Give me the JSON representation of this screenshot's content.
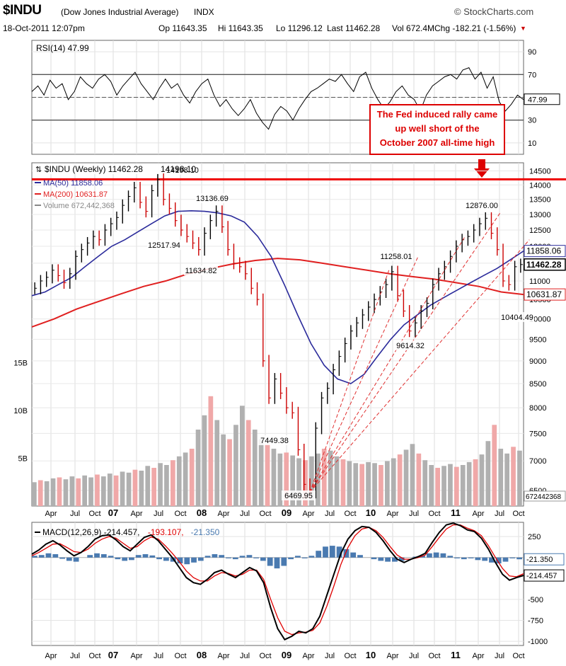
{
  "header": {
    "symbol": "$INDU",
    "name": "(Dow Jones Industrial Average)",
    "exchange": "INDX",
    "brand": "© StockCharts.com",
    "datetime": "18-Oct-2011 12:07pm",
    "open": "Op 11643.35",
    "high": "Hi 11643.35",
    "low": "Lo 11296.12",
    "last": "Last 11462.28",
    "volume": "Vol 672.4M",
    "change": "Chg -182.21 (-1.56%)",
    "change_color": "#cc0000"
  },
  "colors": {
    "price_up": "#000000",
    "price_down": "#cc0000",
    "ma50": "#2b2b9b",
    "ma200": "#e02020",
    "volume_up": "#b0b0b0",
    "volume_down": "#f0a8a8",
    "resistance": "#ee0000",
    "macd_line": "#000000",
    "signal_line": "#e00000",
    "histogram": "#4a7ab0",
    "annotation": "#dd0000"
  },
  "chart_data": [
    {
      "type": "line",
      "title": "RSI(14) 47.99",
      "name": "RSI",
      "ylim": [
        0,
        100
      ],
      "yticks": [
        10,
        30,
        50,
        70,
        90
      ],
      "reference_lines": [
        70,
        50,
        30
      ],
      "last_value_label": "47.99",
      "grid": true,
      "annotation": {
        "text_lines": [
          "The Fed induced rally came",
          "up well short of the",
          "October 2007 all-time high"
        ],
        "location": "right"
      },
      "series": [
        {
          "values": [
            55,
            60,
            52,
            65,
            58,
            62,
            48,
            55,
            68,
            62,
            58,
            66,
            70,
            64,
            52,
            60,
            66,
            72,
            62,
            55,
            48,
            58,
            66,
            58,
            62,
            52,
            45,
            55,
            62,
            66,
            52,
            42,
            48,
            40,
            34,
            40,
            48,
            36,
            28,
            22,
            35,
            42,
            38,
            30,
            40,
            48,
            55,
            58,
            62,
            66,
            64,
            70,
            62,
            55,
            68,
            72,
            58,
            48,
            40,
            46,
            55,
            60,
            52,
            48,
            38,
            52,
            60,
            64,
            68,
            70,
            66,
            74,
            76,
            66,
            72,
            58,
            68,
            46,
            38,
            44,
            52,
            48
          ]
        }
      ]
    },
    {
      "type": "line",
      "title": "$INDU (Weekly) 11462.28",
      "subtitle_last_value": "11462.28",
      "ylabel_scale": "log",
      "ylim": [
        6250,
        14800
      ],
      "yticks": [
        6500,
        7000,
        7500,
        8000,
        8500,
        9000,
        9500,
        10000,
        10500,
        11000,
        11500,
        12000,
        12500,
        13000,
        13500,
        14000,
        14500
      ],
      "x_tick_labels": [
        "Apr",
        "Jul",
        "Oct",
        "07",
        "Apr",
        "Jul",
        "Oct",
        "08",
        "Apr",
        "Jul",
        "Oct",
        "09",
        "Apr",
        "Jul",
        "Oct",
        "10",
        "Apr",
        "Jul",
        "Oct",
        "11",
        "Apr",
        "Jul",
        "Oct"
      ],
      "x_bold_ticks": [
        "07",
        "08",
        "09",
        "10",
        "11"
      ],
      "legend": [
        {
          "label": "MA(50) 11858.06",
          "color": "#2b2b9b"
        },
        {
          "label": "MA(200) 10631.87",
          "color": "#e02020"
        },
        {
          "label": "Volume 672,442,368",
          "color": "#888888"
        }
      ],
      "price_labels": [
        {
          "label": "14198.10",
          "value": 14198.1
        },
        {
          "label": "12517.94",
          "value": 12517.94
        },
        {
          "label": "13136.69",
          "value": 13136.69
        },
        {
          "label": "11634.82",
          "value": 11634.82
        },
        {
          "label": "7449.38",
          "value": 7449.38
        },
        {
          "label": "6469.95",
          "value": 6469.95
        },
        {
          "label": "11258.01",
          "value": 11258.01
        },
        {
          "label": "9614.32",
          "value": 9614.32
        },
        {
          "label": "12876.00",
          "value": 12876.0
        },
        {
          "label": "10404.49",
          "value": 10404.49
        }
      ],
      "axis_badges": [
        {
          "label": "11858.06",
          "value": 11858.06,
          "style": "ma50"
        },
        {
          "label": "11462.28",
          "value": 11462.28,
          "style": "last"
        },
        {
          "label": "10631.87",
          "value": 10631.87,
          "style": "ma200"
        }
      ],
      "resistance_level": 14198.1,
      "series": [
        {
          "name": "$INDU",
          "values": [
            10800,
            11000,
            11100,
            11300,
            11150,
            10950,
            11200,
            11700,
            11900,
            12100,
            12300,
            12200,
            12500,
            12700,
            12900,
            13300,
            13600,
            13900,
            13400,
            13100,
            13800,
            14198,
            13500,
            13200,
            12800,
            12500,
            12300,
            12100,
            11900,
            12400,
            12800,
            13100,
            12600,
            11900,
            11500,
            11400,
            11200,
            10800,
            10500,
            9000,
            8200,
            8600,
            8300,
            8000,
            7900,
            7200,
            6600,
            6469,
            7600,
            8200,
            8400,
            8800,
            9100,
            9400,
            9700,
            9900,
            10100,
            10300,
            10500,
            10700,
            10900,
            11258,
            10600,
            10200,
            9700,
            9900,
            10200,
            10400,
            10900,
            11200,
            11400,
            11700,
            12000,
            12200,
            12300,
            12500,
            12700,
            12876,
            12400,
            11900,
            11000,
            10900,
            11400,
            11462
          ]
        },
        {
          "name": "MA(50)",
          "values": [
            10600,
            10700,
            10900,
            11100,
            11400,
            11700,
            12000,
            12200,
            12450,
            12700,
            12950,
            13100,
            13120,
            13100,
            13050,
            12950,
            12750,
            12300,
            11700,
            10900,
            10100,
            9400,
            8900,
            8600,
            8500,
            8700,
            9100,
            9500,
            9850,
            10100,
            10350,
            10550,
            10750,
            10950,
            11150,
            11350,
            11600,
            11858
          ]
        },
        {
          "name": "MA(200)",
          "values": [
            9800,
            10000,
            10250,
            10450,
            10650,
            10850,
            11000,
            11200,
            11350,
            11480,
            11580,
            11640,
            11600,
            11500,
            11400,
            11300,
            11200,
            11120,
            11050,
            10950,
            10850,
            10700,
            10631
          ]
        }
      ]
    },
    {
      "type": "bar",
      "title": "Volume",
      "name": "Volume",
      "yticks_labels": [
        "5B",
        "10B",
        "15B"
      ],
      "yticks": [
        5,
        10,
        15
      ],
      "last_value_label": "672442368",
      "values_billions": [
        2.5,
        2.7,
        2.6,
        2.9,
        3.0,
        2.8,
        3.1,
        2.9,
        3.2,
        3.0,
        3.3,
        3.1,
        3.4,
        3.2,
        3.6,
        3.5,
        3.8,
        3.7,
        4.2,
        4.0,
        4.5,
        4.3,
        4.8,
        5.2,
        5.6,
        6.0,
        8.0,
        9.5,
        11.5,
        9.0,
        7.5,
        7.0,
        8.5,
        10.5,
        9.0,
        8.0,
        7.0,
        6.5,
        6.0,
        5.5,
        5.6,
        5.3,
        5.0,
        4.8,
        5.2,
        5.5,
        6.0,
        5.8,
        5.2,
        4.9,
        4.7,
        4.5,
        4.4,
        4.6,
        4.5,
        4.3,
        4.7,
        5.0,
        5.4,
        5.9,
        6.5,
        5.5,
        4.8,
        4.3,
        4.0,
        4.2,
        4.4,
        4.1,
        4.3,
        4.6,
        4.9,
        5.4,
        6.8,
        8.5,
        6.0,
        5.5,
        6.2,
        5.8
      ]
    },
    {
      "type": "line",
      "title": "MACD(12,26,9)",
      "legend": [
        {
          "label": "MACD(12,26,9) -214.457,",
          "color": "#000000"
        },
        {
          "label": "-193.107,",
          "color": "#e00000"
        },
        {
          "label": "-21.350",
          "color": "#4a7ab0"
        }
      ],
      "ylim": [
        -1050,
        420
      ],
      "yticks": [
        250,
        -500,
        -750,
        -1000
      ],
      "axis_badges": [
        {
          "label": "-21.350",
          "value": -21.35
        },
        {
          "label": "-214.457",
          "value": -214.457
        }
      ],
      "x_tick_labels": [
        "Apr",
        "Jul",
        "Oct",
        "07",
        "Apr",
        "Jul",
        "Oct",
        "08",
        "Apr",
        "Jul",
        "Oct",
        "09",
        "Apr",
        "Jul",
        "Oct",
        "10",
        "Apr",
        "Jul",
        "Oct",
        "11",
        "Apr",
        "Jul",
        "Oct"
      ],
      "series": [
        {
          "name": "MACD",
          "values": [
            40,
            90,
            160,
            200,
            150,
            80,
            20,
            60,
            130,
            220,
            260,
            270,
            210,
            130,
            80,
            160,
            240,
            270,
            200,
            100,
            0,
            -120,
            -240,
            -300,
            -320,
            -260,
            -180,
            -150,
            -200,
            -240,
            -180,
            -120,
            -160,
            -300,
            -600,
            -850,
            -980,
            -940,
            -880,
            -900,
            -850,
            -700,
            -450,
            -200,
            50,
            220,
            320,
            370,
            360,
            300,
            200,
            80,
            -20,
            -60,
            -20,
            10,
            50,
            180,
            300,
            390,
            410,
            380,
            330,
            310,
            230,
            100,
            -60,
            -200,
            -270,
            -240,
            -214
          ]
        },
        {
          "name": "Signal",
          "values": [
            20,
            60,
            110,
            160,
            165,
            120,
            70,
            60,
            100,
            170,
            220,
            250,
            230,
            170,
            110,
            130,
            200,
            245,
            220,
            140,
            50,
            -50,
            -160,
            -240,
            -280,
            -280,
            -220,
            -180,
            -190,
            -220,
            -200,
            -150,
            -150,
            -260,
            -500,
            -720,
            -880,
            -920,
            -900,
            -890,
            -870,
            -780,
            -580,
            -340,
            -80,
            120,
            260,
            340,
            360,
            320,
            240,
            130,
            30,
            -20,
            -20,
            0,
            30,
            130,
            240,
            340,
            390,
            390,
            350,
            320,
            260,
            140,
            0,
            -130,
            -220,
            -230,
            -193
          ]
        },
        {
          "name": "Histogram",
          "values": [
            20,
            30,
            50,
            40,
            -15,
            -40,
            -50,
            0,
            30,
            50,
            40,
            20,
            -20,
            -40,
            -30,
            30,
            40,
            25,
            -20,
            -40,
            -50,
            -70,
            -80,
            -60,
            -40,
            20,
            40,
            30,
            -10,
            -20,
            20,
            30,
            -10,
            -40,
            -100,
            -130,
            -100,
            -20,
            20,
            -10,
            20,
            80,
            130,
            140,
            130,
            100,
            60,
            30,
            0,
            -20,
            -40,
            -50,
            -50,
            -40,
            0,
            10,
            20,
            50,
            60,
            50,
            20,
            -10,
            -20,
            -10,
            -30,
            -40,
            -60,
            -70,
            -50,
            -10,
            -21
          ]
        }
      ]
    }
  ]
}
